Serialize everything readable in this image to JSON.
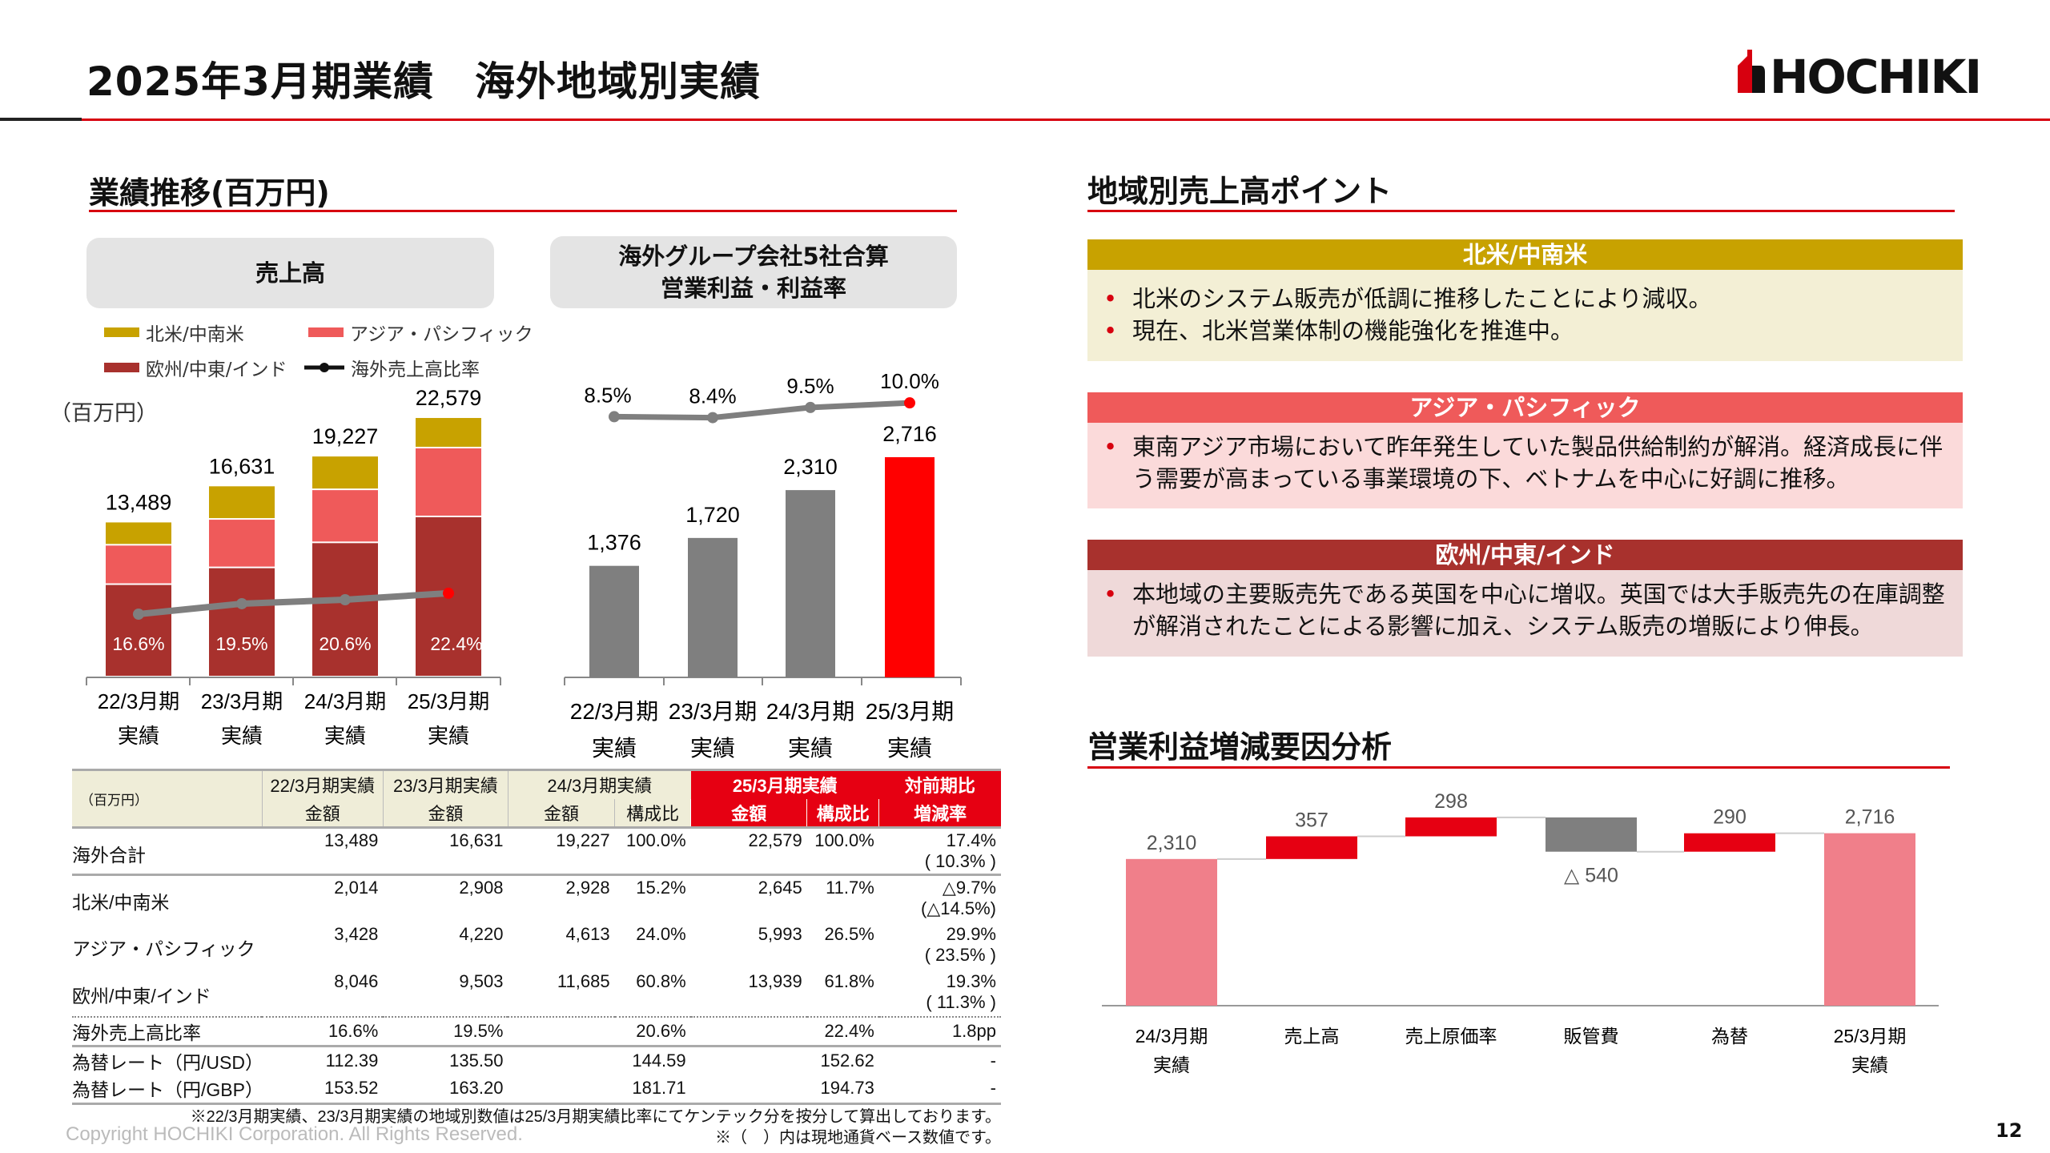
{
  "header": {
    "title": "2025年3月期業績　海外地域別実績",
    "logo_text": "HOCHIKI",
    "page_number": "12"
  },
  "left": {
    "section_title": "業績推移(百万円)",
    "sales_box": "売上高",
    "profit_box_line1": "海外グループ会社5社合算",
    "profit_box_line2": "営業利益・利益率",
    "unit": "（百万円）"
  },
  "chart_data": [
    {
      "type": "bar",
      "stacked": true,
      "title": "売上高",
      "categories": [
        [
          "22/3月期",
          "実績"
        ],
        [
          "23/3月期",
          "実績"
        ],
        [
          "24/3月期",
          "実績"
        ],
        [
          "25/3月期",
          "実績"
        ]
      ],
      "series": [
        {
          "name": "欧州/中東/インド",
          "values": [
            8046,
            9503,
            11685,
            13939
          ],
          "color": "#a8312d"
        },
        {
          "name": "アジア・パシフィック",
          "values": [
            3428,
            4220,
            4613,
            5993
          ],
          "color": "#ef5a5a"
        },
        {
          "name": "北米/中南米",
          "values": [
            2014,
            2908,
            2928,
            2645
          ],
          "color": "#c8a200"
        }
      ],
      "totals": [
        "13,489",
        "16,631",
        "19,227",
        "22,579"
      ],
      "line": {
        "name": "海外売上高比率",
        "values": [
          16.6,
          19.5,
          20.6,
          22.4
        ],
        "labels": [
          "16.6%",
          "19.5%",
          "20.6%",
          "22.4%"
        ],
        "color": "#7f7f7f",
        "highlight": "#ff0000"
      },
      "ylabel": "（百万円）"
    },
    {
      "type": "bar",
      "title": "海外グループ会社5社合算 営業利益・利益率",
      "categories": [
        [
          "22/3月期",
          "実績"
        ],
        [
          "23/3月期",
          "実績"
        ],
        [
          "24/3月期",
          "実績"
        ],
        [
          "25/3月期",
          "実績"
        ]
      ],
      "values": [
        1376,
        1720,
        2310,
        2716
      ],
      "labels": [
        "1,376",
        "1,720",
        "2,310",
        "2,716"
      ],
      "colors": [
        "#7f7f7f",
        "#7f7f7f",
        "#7f7f7f",
        "#ff0000"
      ],
      "line": {
        "values": [
          8.5,
          8.4,
          9.5,
          10.0
        ],
        "labels": [
          "8.5%",
          "8.4%",
          "9.5%",
          "10.0%"
        ]
      }
    },
    {
      "type": "waterfall",
      "title": "営業利益増減要因分析",
      "categories": [
        [
          "24/3月期",
          "実績"
        ],
        [
          "売上高"
        ],
        [
          "売上原価率"
        ],
        [
          "販管費"
        ],
        [
          "為替"
        ],
        [
          "25/3月期",
          "実績"
        ]
      ],
      "values": [
        2310,
        357,
        298,
        -540,
        290,
        2716
      ],
      "labels": [
        "2,310",
        "357",
        "298",
        "△ 540",
        "290",
        "2,716"
      ],
      "colors": {
        "total": "#f07f8a",
        "increase": "#e60012",
        "decrease": "#7f7f7f"
      }
    }
  ],
  "table": {
    "unit": "（百万円）",
    "col_groups": [
      "22/3月期実績",
      "23/3月期実績",
      "24/3月期実績",
      "25/3月期実績",
      "対前期比"
    ],
    "sub_headers": [
      "金額",
      "金額",
      "金額",
      "構成比",
      "金額",
      "構成比",
      "増減率"
    ],
    "rows": [
      {
        "label": "海外合計",
        "cells": [
          "13,489",
          "16,631",
          "19,227",
          "100.0%",
          "22,579",
          "100.0%",
          "17.4%"
        ],
        "sub": "( 10.3% )"
      },
      {
        "label": "北米/中南米",
        "cells": [
          "2,014",
          "2,908",
          "2,928",
          "15.2%",
          "2,645",
          "11.7%",
          "△9.7%"
        ],
        "sub": "(△14.5%)"
      },
      {
        "label": "アジア・パシフィック",
        "cells": [
          "3,428",
          "4,220",
          "4,613",
          "24.0%",
          "5,993",
          "26.5%",
          "29.9%"
        ],
        "sub": "( 23.5% )"
      },
      {
        "label": "欧州/中東/インド",
        "cells": [
          "8,046",
          "9,503",
          "11,685",
          "60.8%",
          "13,939",
          "61.8%",
          "19.3%"
        ],
        "sub": "( 11.3% )"
      }
    ],
    "ratio_row": {
      "label": "海外売上高比率",
      "cells": [
        "16.6%",
        "19.5%",
        "20.6%",
        "22.4%",
        "1.8pp"
      ]
    },
    "fx_rows": [
      {
        "label": "為替レート（円/USD）",
        "cells": [
          "112.39",
          "135.50",
          "144.59",
          "152.62",
          "-"
        ]
      },
      {
        "label": "為替レート（円/GBP）",
        "cells": [
          "153.52",
          "163.20",
          "181.71",
          "194.73",
          "-"
        ]
      }
    ],
    "note1": "※22/3月期実績、23/3月期実績の地域別数値は25/3月期実績比率にてケンテック分を按分して算出しております。",
    "note2": "※（　）内は現地通貨ベース数値です。"
  },
  "right": {
    "section_title": "地域別売上高ポイント",
    "regions": [
      {
        "name": "北米/中南米",
        "bullets": [
          "北米のシステム販売が低調に推移したことにより減収。",
          "現在、北米営業体制の機能強化を推進中。"
        ]
      },
      {
        "name": "アジア・パシフィック",
        "bullets": [
          "東南アジア市場において昨年発生していた製品供給制約が解消。経済成長に伴う需要が高まっている事業環境の下、ベトナムを中心に好調に推移。"
        ]
      },
      {
        "name": "欧州/中東/インド",
        "bullets": [
          "本地域の主要販売先である英国を中心に増収。英国では大手販売先の在庫調整が解消されたことによる影響に加え、システム販売の増販により伸長。"
        ]
      }
    ],
    "waterfall_title": "営業利益増減要因分析"
  },
  "footer": {
    "copyright": "Copyright HOCHIKI Corporation. All Rights Reserved."
  }
}
